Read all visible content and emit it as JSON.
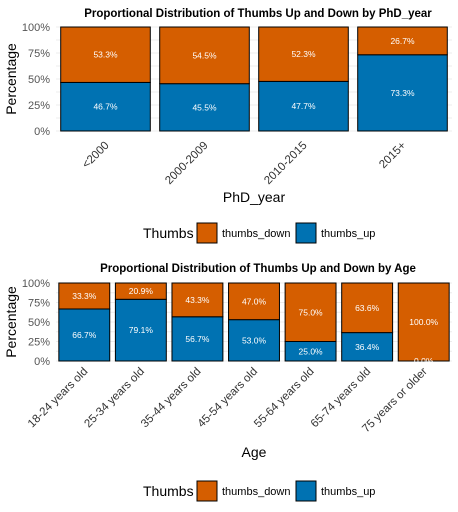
{
  "colors": {
    "thumbs_down": "#D55E00",
    "thumbs_up": "#0072B2",
    "bar_outline": "#000000"
  },
  "chart_data": [
    {
      "type": "bar",
      "stacked": true,
      "title": "Proportional Distribution of Thumbs Up and Down by PhD_year",
      "xlabel": "PhD_year",
      "ylabel": "Percentage",
      "ylim": [
        0,
        100
      ],
      "yticks": [
        "0%",
        "25%",
        "50%",
        "75%",
        "100%"
      ],
      "categories": [
        "<2000",
        "2000-2009",
        "2010-2015",
        "2015+"
      ],
      "series": [
        {
          "name": "thumbs_up",
          "values": [
            46.7,
            45.5,
            47.7,
            73.3
          ],
          "labels": [
            "46.7%",
            "45.5%",
            "47.7%",
            "73.3%"
          ]
        },
        {
          "name": "thumbs_down",
          "values": [
            53.3,
            54.5,
            52.3,
            26.7
          ],
          "labels": [
            "53.3%",
            "54.5%",
            "52.3%",
            "26.7%"
          ]
        }
      ],
      "legend": {
        "title": "Thumbs",
        "entries": [
          "thumbs_down",
          "thumbs_up"
        ],
        "position": "bottom"
      }
    },
    {
      "type": "bar",
      "stacked": true,
      "title": "Proportional Distribution of Thumbs Up and Down by Age",
      "xlabel": "Age",
      "ylabel": "Percentage",
      "ylim": [
        0,
        100
      ],
      "yticks": [
        "0%",
        "25%",
        "50%",
        "75%",
        "100%"
      ],
      "categories": [
        "18-24 years old",
        "25-34 years old",
        "35-44 years old",
        "45-54 years old",
        "55-64 years old",
        "65-74 years old",
        "75 years or older"
      ],
      "series": [
        {
          "name": "thumbs_up",
          "values": [
            66.7,
            79.1,
            56.7,
            53.0,
            25.0,
            36.4,
            0.0
          ],
          "labels": [
            "66.7%",
            "79.1%",
            "56.7%",
            "53.0%",
            "25.0%",
            "36.4%",
            "0.0%"
          ]
        },
        {
          "name": "thumbs_down",
          "values": [
            33.3,
            20.9,
            43.3,
            47.0,
            75.0,
            63.6,
            100.0
          ],
          "labels": [
            "33.3%",
            "20.9%",
            "43.3%",
            "47.0%",
            "75.0%",
            "63.6%",
            "100.0%"
          ]
        }
      ],
      "legend": {
        "title": "Thumbs",
        "entries": [
          "thumbs_down",
          "thumbs_up"
        ],
        "position": "bottom"
      }
    }
  ]
}
